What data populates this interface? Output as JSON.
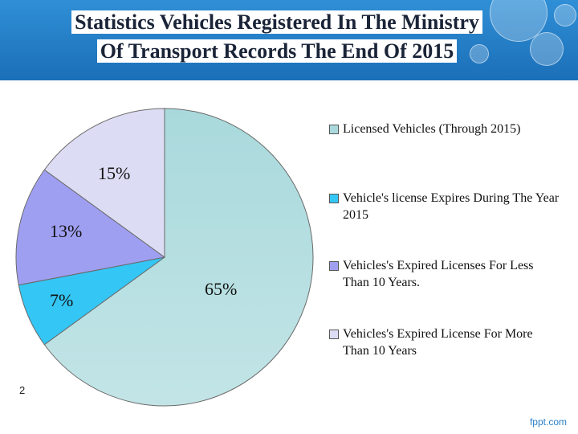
{
  "slide": {
    "title_line1": "Statistics Vehicles Registered In The Ministry",
    "title_line2": "Of Transport Records The End Of 2015",
    "page_number": "2",
    "brand": "fppt.com"
  },
  "chart_data": {
    "type": "pie",
    "title": "",
    "slices": [
      {
        "name": "Licensed Vehicles (Through 2015)",
        "value": 65,
        "label": "65%",
        "color": "#a9d9dc"
      },
      {
        "name": "Vehicle's license Expires During The Year 2015",
        "value": 7,
        "label": "7%",
        "color": "#34c6f4"
      },
      {
        "name": "Vehicles's Expired Licenses For Less Than 10 Years.",
        "value": 13,
        "label": "13%",
        "color": "#9f9ff2"
      },
      {
        "name": "Vehicles's Expired License For More Than 10 Years",
        "value": 15,
        "label": "15%",
        "color": "#dcdcf4"
      }
    ],
    "legend_position": "right"
  }
}
